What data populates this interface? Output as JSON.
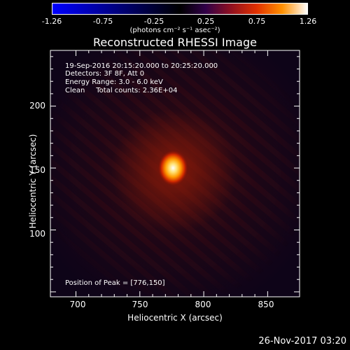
{
  "chart_data": {
    "type": "heatmap",
    "title": "Reconstructed RHESSI Image",
    "colorbar": {
      "ticks": [
        "-1.26",
        "-0.75",
        "-0.25",
        "0.25",
        "0.75",
        "1.26"
      ],
      "range": [
        -1.26,
        1.26
      ],
      "unit_label": "(photons cm⁻² s⁻¹ asec⁻²)",
      "colormap": [
        "#0000ff",
        "#000000",
        "#300048",
        "#901020",
        "#e03000",
        "#ff9000",
        "#ffffff"
      ]
    },
    "annotations": {
      "line1": "19-Sep-2016 20:15:20.000 to 20:25:20.000",
      "line2": "Detectors: 3F 8F, Att 0",
      "line3": "Energy Range: 3.0 - 6.0 keV",
      "line4": "Clean     Total counts: 2.36E+04",
      "peak": "Position of Peak = [776,150]"
    },
    "xlabel": "Heliocentric X (arcsec)",
    "ylabel": "Heliocentric Y (arcsec)",
    "xticks": [
      "700",
      "750",
      "800",
      "850"
    ],
    "yticks": [
      "100",
      "150",
      "200"
    ],
    "xlim": [
      680,
      875
    ],
    "ylim": [
      46,
      245
    ],
    "peak": {
      "x": 776,
      "y": 150,
      "value": 1.26
    },
    "timestamp": "26-Nov-2017 03:20"
  }
}
